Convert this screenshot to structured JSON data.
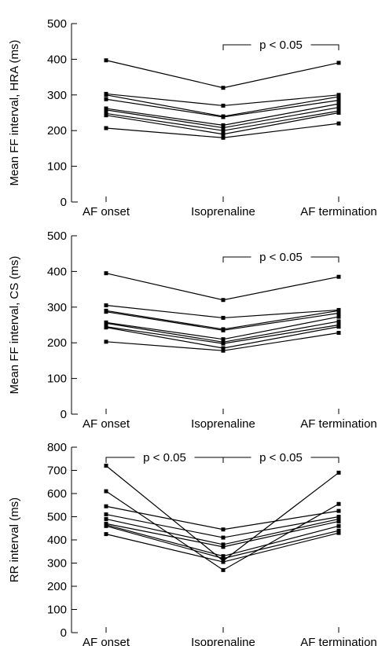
{
  "chart_data": [
    {
      "type": "line",
      "ylabel": "Mean FF interval, HRA (ms)",
      "categories": [
        "AF onset",
        "Isoprenaline",
        "AF termination"
      ],
      "ylim": [
        0,
        500
      ],
      "yticks": [
        "0",
        "100",
        "200",
        "300",
        "400",
        "500"
      ],
      "series": [
        {
          "values": [
            397,
            320,
            390
          ]
        },
        {
          "values": [
            303,
            270,
            300
          ]
        },
        {
          "values": [
            300,
            240,
            295
          ]
        },
        {
          "values": [
            288,
            238,
            285
          ]
        },
        {
          "values": [
            262,
            215,
            275
          ]
        },
        {
          "values": [
            258,
            208,
            265
          ]
        },
        {
          "values": [
            248,
            200,
            255
          ]
        },
        {
          "values": [
            243,
            190,
            250
          ]
        },
        {
          "values": [
            207,
            180,
            220
          ]
        }
      ],
      "annotations": [
        {
          "text": "p < 0.05",
          "from": "Isoprenaline",
          "to": "AF termination"
        }
      ]
    },
    {
      "type": "line",
      "ylabel": "Mean FF interval, CS (ms)",
      "categories": [
        "AF onset",
        "Isoprenaline",
        "AF termination"
      ],
      "ylim": [
        0,
        500
      ],
      "yticks": [
        "0",
        "100",
        "200",
        "300",
        "400",
        "500"
      ],
      "series": [
        {
          "values": [
            395,
            320,
            385
          ]
        },
        {
          "values": [
            305,
            270,
            292
          ]
        },
        {
          "values": [
            290,
            238,
            290
          ]
        },
        {
          "values": [
            287,
            235,
            283
          ]
        },
        {
          "values": [
            257,
            210,
            273
          ]
        },
        {
          "values": [
            255,
            202,
            260
          ]
        },
        {
          "values": [
            245,
            198,
            250
          ]
        },
        {
          "values": [
            243,
            185,
            245
          ]
        },
        {
          "values": [
            203,
            178,
            228
          ]
        }
      ],
      "annotations": [
        {
          "text": "p < 0.05",
          "from": "Isoprenaline",
          "to": "AF termination"
        }
      ]
    },
    {
      "type": "line",
      "ylabel": "RR interval (ms)",
      "categories": [
        "AF onset",
        "Isoprenaline",
        "AF termination"
      ],
      "ylim": [
        0,
        800
      ],
      "yticks": [
        "0",
        "100",
        "200",
        "300",
        "400",
        "500",
        "600",
        "700",
        "800"
      ],
      "series": [
        {
          "values": [
            720,
            310,
            690
          ]
        },
        {
          "values": [
            610,
            270,
            555
          ]
        },
        {
          "values": [
            545,
            445,
            525
          ]
        },
        {
          "values": [
            510,
            410,
            500
          ]
        },
        {
          "values": [
            490,
            380,
            490
          ]
        },
        {
          "values": [
            470,
            370,
            480
          ]
        },
        {
          "values": [
            465,
            330,
            460
          ]
        },
        {
          "values": [
            460,
            320,
            440
          ]
        },
        {
          "values": [
            425,
            305,
            430
          ]
        }
      ],
      "annotations": [
        {
          "text": "p < 0.05",
          "from": "AF onset",
          "to": "Isoprenaline"
        },
        {
          "text": "p < 0.05",
          "from": "Isoprenaline",
          "to": "AF termination"
        }
      ]
    }
  ]
}
